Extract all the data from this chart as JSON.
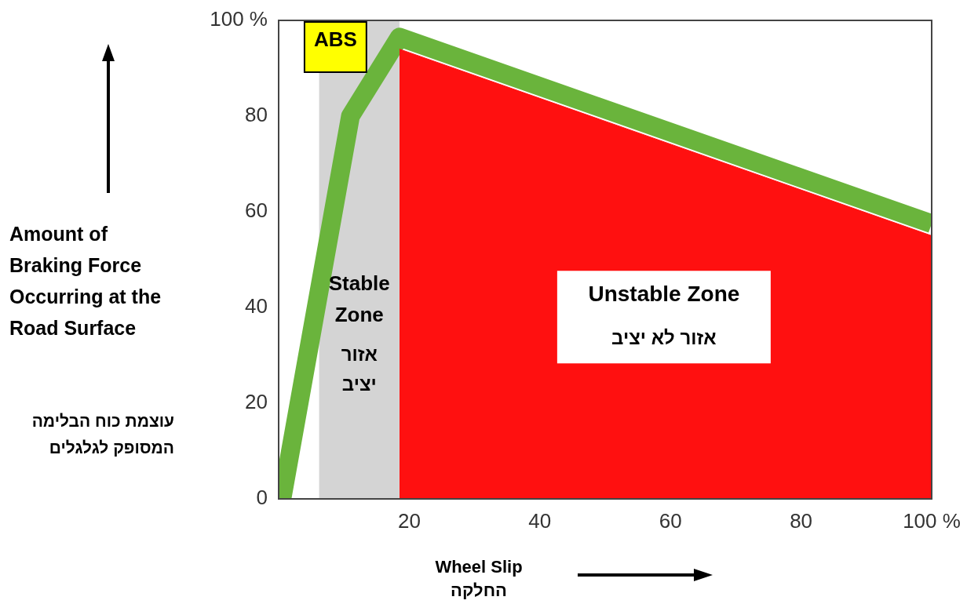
{
  "chart_data": {
    "type": "area",
    "xlabel": "Wheel Slip\nהחלקה",
    "ylabel": "Amount of Braking Force Occurring at the Road Surface\nעוצמת כוח הבלימה המסופק לגלגלים",
    "xlim": [
      0,
      100
    ],
    "ylim": [
      0,
      100
    ],
    "xticks": [
      20,
      40,
      60,
      80,
      {
        "value": 100,
        "label": "100 %"
      }
    ],
    "yticks": [
      0,
      20,
      40,
      60,
      80,
      {
        "value": 100,
        "label": "100 %"
      }
    ],
    "grid": false,
    "legend": false,
    "bands": [
      {
        "axis": "x",
        "from": 6.2,
        "to": 18.5,
        "label": "Stable Zone\nאזור יציב",
        "color": "#d4d4d4"
      }
    ],
    "series": [
      {
        "color": "#ff1010",
        "x": [
          18.5,
          100
        ],
        "values": [
          94,
          55
        ]
      },
      {
        "type": "line",
        "color": "#6ab43c",
        "x": [
          0.5,
          11,
          18.5,
          100
        ],
        "values": [
          0,
          80,
          96.5,
          57.5
        ]
      }
    ],
    "annotations": [
      "ABS",
      "Unstable Zone\nאזור לא יציב"
    ]
  }
}
